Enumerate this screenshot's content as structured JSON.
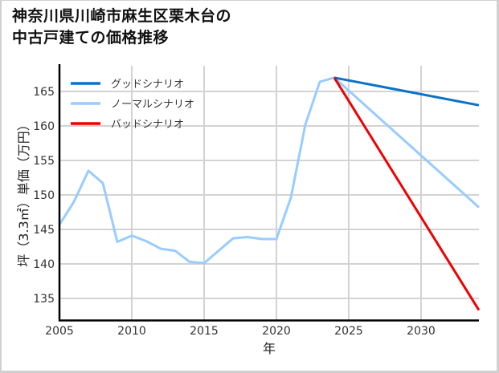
{
  "title": "神奈川県川崎市麻生区栗木台の\n中古戸建ての価格推移",
  "chart_data": {
    "type": "line",
    "title": "神奈川県川崎市麻生区栗木台の中古戸建ての価格推移",
    "xlabel": "年",
    "ylabel": "坪（3.3㎡）単価（万円）",
    "xlim": [
      2005,
      2034
    ],
    "ylim": [
      131.7,
      168.6
    ],
    "x_ticks": [
      2005,
      2010,
      2015,
      2020,
      2025,
      2030
    ],
    "y_ticks": [
      135,
      140,
      145,
      150,
      155,
      160,
      165
    ],
    "grid": true,
    "legend_position": "upper left",
    "series": [
      {
        "name": "グッドシナリオ",
        "color": "#0a72c8",
        "x": [
          2024,
          2034
        ],
        "values": [
          167.0,
          163.0
        ]
      },
      {
        "name": "ノーマルシナリオ",
        "color": "#99ccff",
        "x": [
          2005,
          2006,
          2007,
          2008,
          2009,
          2010,
          2011,
          2012,
          2013,
          2014,
          2015,
          2016,
          2017,
          2018,
          2019,
          2020,
          2021,
          2022,
          2023,
          2024,
          2034
        ],
        "values": [
          145.7,
          149.0,
          153.5,
          151.7,
          143.2,
          144.1,
          143.3,
          142.2,
          141.9,
          140.3,
          140.1,
          141.9,
          143.7,
          143.9,
          143.6,
          143.6,
          149.6,
          160.2,
          166.4,
          167.0,
          148.2
        ]
      },
      {
        "name": "バッドシナリオ",
        "color": "#ee0000",
        "x": [
          2024,
          2034
        ],
        "values": [
          167.0,
          133.3
        ]
      }
    ]
  }
}
